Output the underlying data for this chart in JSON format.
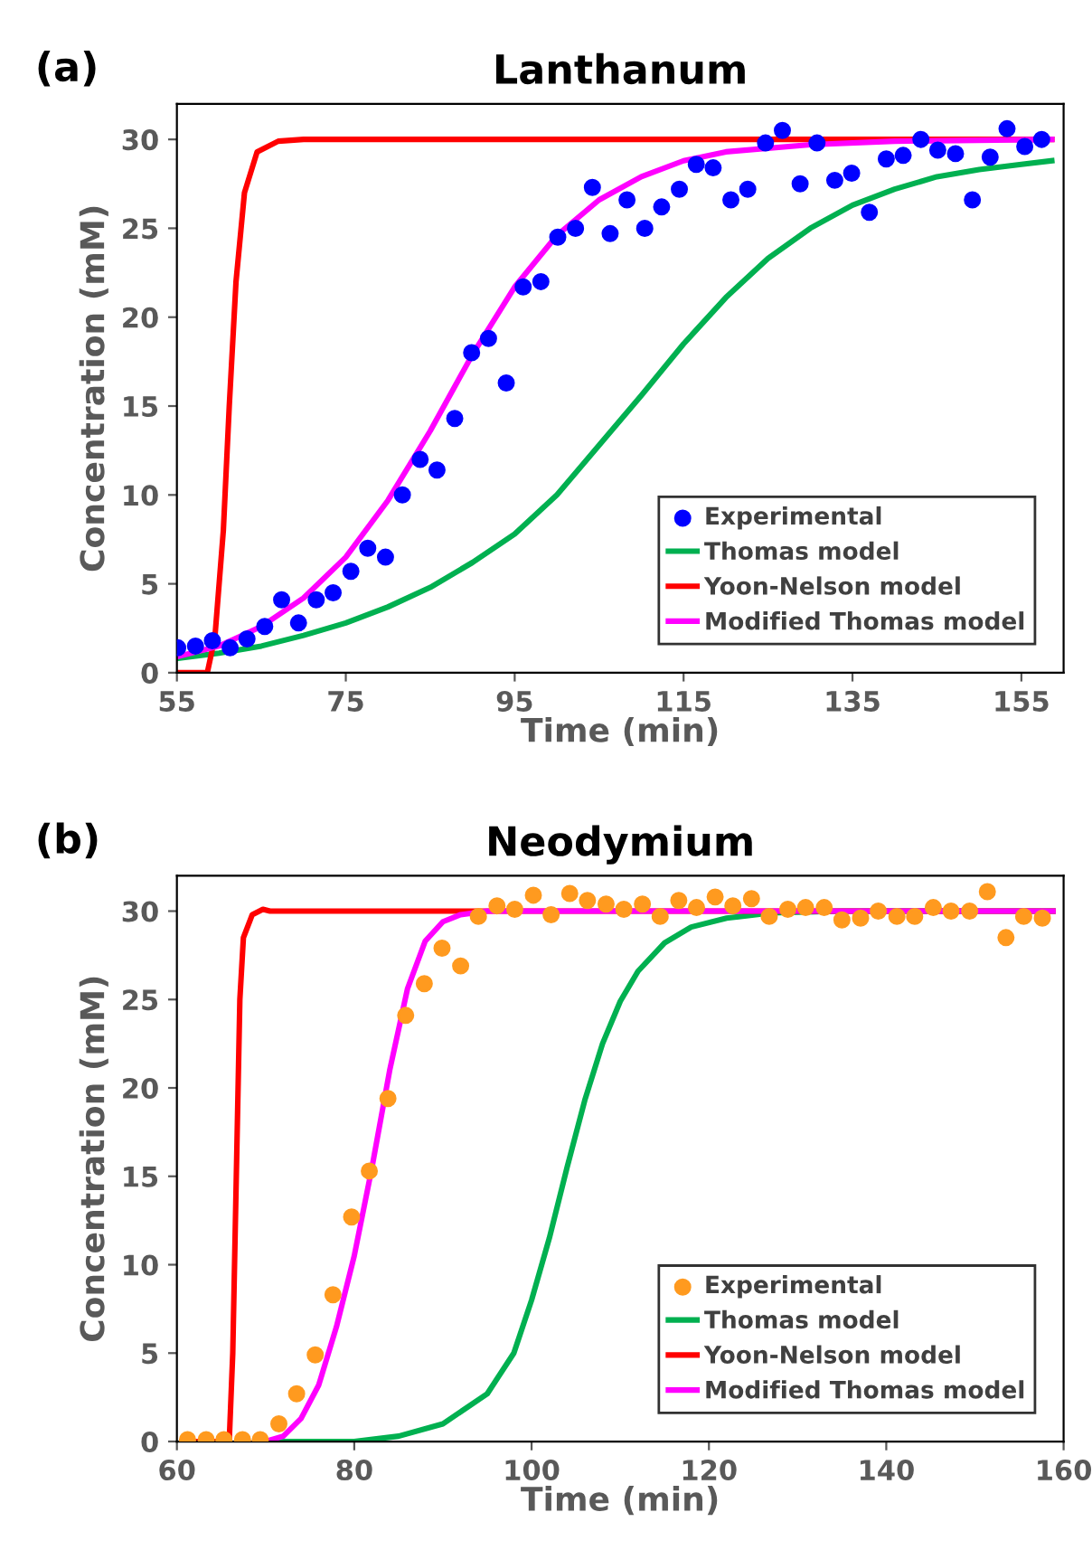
{
  "chart_data": [
    {
      "type": "line",
      "title": "Lanthanum",
      "annotations": [
        "(a)"
      ],
      "xlabel": "Time (min)",
      "ylabel": "Concentration (mM)",
      "xlim": [
        55,
        160
      ],
      "ylim": [
        0,
        32
      ],
      "xticks": [
        55,
        75,
        95,
        115,
        135,
        155
      ],
      "yticks": [
        0,
        5,
        10,
        15,
        20,
        25,
        30
      ],
      "legend": "bottom right",
      "grid": false,
      "series": [
        {
          "name": "Experimental",
          "type": "scatter",
          "marker": "circle",
          "color": "#0000ff",
          "x": [
            55.1,
            57.2,
            59.2,
            61.3,
            63.3,
            65.4,
            67.4,
            69.4,
            71.5,
            73.5,
            75.6,
            77.6,
            79.7,
            81.7,
            83.8,
            85.8,
            87.9,
            89.9,
            91.9,
            94.0,
            96.0,
            98.1,
            100.1,
            102.2,
            104.2,
            106.3,
            108.3,
            110.4,
            112.4,
            114.5,
            116.5,
            118.5,
            120.6,
            122.6,
            124.7,
            126.7,
            128.8,
            130.8,
            132.9,
            134.9,
            137.0,
            139.0,
            141.0,
            143.1,
            145.1,
            147.2,
            149.2,
            151.3,
            153.3,
            155.4,
            157.4
          ],
          "values": [
            1.4,
            1.5,
            1.8,
            1.4,
            1.9,
            2.6,
            4.1,
            2.8,
            4.1,
            4.5,
            5.7,
            7.0,
            6.5,
            10.0,
            12.0,
            11.4,
            14.3,
            18.0,
            18.8,
            16.3,
            21.7,
            22.0,
            24.5,
            25.0,
            27.3,
            24.7,
            26.6,
            25.0,
            26.2,
            27.2,
            28.6,
            28.4,
            26.6,
            27.2,
            29.8,
            30.5,
            27.5,
            29.8,
            27.7,
            28.1,
            25.9,
            28.9,
            29.1,
            30.0,
            29.4,
            29.2,
            26.6,
            29.0,
            30.6,
            29.6,
            30.0
          ]
        },
        {
          "name": "Thomas model",
          "type": "line",
          "marker": "none",
          "color": "#00b050",
          "x": [
            55,
            60,
            65,
            70,
            75,
            80,
            85,
            90,
            95,
            100,
            105,
            110,
            115,
            120,
            125,
            130,
            135,
            140,
            145,
            150,
            155,
            158.6
          ],
          "values": [
            0.8,
            1.1,
            1.5,
            2.1,
            2.8,
            3.7,
            4.8,
            6.2,
            7.8,
            10.0,
            12.8,
            15.6,
            18.5,
            21.1,
            23.3,
            25.0,
            26.3,
            27.2,
            27.9,
            28.3,
            28.6,
            28.8
          ]
        },
        {
          "name": "Yoon-Nelson model",
          "type": "line",
          "marker": "none",
          "color": "#ff0000",
          "x": [
            55,
            58.6,
            59.5,
            60.5,
            61.2,
            62.0,
            63.0,
            64.5,
            67,
            70,
            158.6
          ],
          "values": [
            0,
            0,
            2,
            8,
            15,
            22,
            27,
            29.3,
            29.9,
            30,
            30
          ]
        },
        {
          "name": "Modified Thomas model",
          "type": "line",
          "marker": "none",
          "color": "#ff00ff",
          "x": [
            55,
            60,
            65,
            70,
            75,
            80,
            85,
            90,
            95,
            100,
            105,
            110,
            115,
            120,
            130,
            140,
            158.6
          ],
          "values": [
            0.9,
            1.5,
            2.6,
            4.2,
            6.5,
            9.7,
            13.6,
            17.9,
            21.7,
            24.6,
            26.6,
            27.9,
            28.8,
            29.3,
            29.7,
            29.9,
            30
          ]
        }
      ]
    },
    {
      "type": "line",
      "title": "Neodymium",
      "annotations": [
        "(b)"
      ],
      "xlabel": "Time (min)",
      "ylabel": "Concentration (mM)",
      "xlim": [
        60,
        160
      ],
      "ylim": [
        0,
        32
      ],
      "xticks": [
        60,
        80,
        100,
        120,
        140,
        160
      ],
      "yticks": [
        0,
        5,
        10,
        15,
        20,
        25,
        30
      ],
      "legend": "bottom right",
      "grid": false,
      "series": [
        {
          "name": "Experimental",
          "type": "scatter",
          "marker": "circle",
          "color": "#ff9a1f",
          "x": [
            61.2,
            63.3,
            65.3,
            67.4,
            69.4,
            71.5,
            73.5,
            75.6,
            77.6,
            79.7,
            81.7,
            83.8,
            85.8,
            87.9,
            89.9,
            92.0,
            94.0,
            96.1,
            98.1,
            100.2,
            102.2,
            104.3,
            106.3,
            108.4,
            110.4,
            112.5,
            114.5,
            116.6,
            118.6,
            120.7,
            122.7,
            124.8,
            126.8,
            128.9,
            130.9,
            133.0,
            135.0,
            137.1,
            139.1,
            141.2,
            143.2,
            145.3,
            147.3,
            149.4,
            151.4,
            153.5,
            155.5,
            157.6
          ],
          "values": [
            0.1,
            0.1,
            0.1,
            0.1,
            0.1,
            1.0,
            2.7,
            4.9,
            8.3,
            12.7,
            15.3,
            19.4,
            24.1,
            25.9,
            27.9,
            26.9,
            29.7,
            30.3,
            30.1,
            30.9,
            29.8,
            31.0,
            30.6,
            30.4,
            30.1,
            30.4,
            29.7,
            30.6,
            30.2,
            30.8,
            30.3,
            30.7,
            29.7,
            30.1,
            30.2,
            30.2,
            29.5,
            29.6,
            30.0,
            29.7,
            29.7,
            30.2,
            30.0,
            30.0,
            31.1,
            28.5,
            29.7,
            29.6
          ]
        },
        {
          "name": "Thomas model",
          "type": "line",
          "marker": "none",
          "color": "#00b050",
          "x": [
            70,
            80,
            85,
            90,
            95,
            98,
            100,
            102,
            104,
            106,
            108,
            110,
            112,
            115,
            118,
            122,
            127,
            135,
            158.8
          ],
          "values": [
            0,
            0,
            0.3,
            1.0,
            2.7,
            5,
            8,
            11.5,
            15.5,
            19.3,
            22.5,
            24.9,
            26.6,
            28.2,
            29.1,
            29.6,
            29.9,
            30,
            30
          ]
        },
        {
          "name": "Yoon-Nelson model",
          "type": "line",
          "marker": "none",
          "color": "#ff0000",
          "x": [
            61,
            65.9,
            66.3,
            66.7,
            67.1,
            67.5,
            68.5,
            69.7,
            70.5,
            158.8
          ],
          "values": [
            0,
            0,
            5,
            15,
            25,
            28.5,
            29.8,
            30.1,
            30,
            30
          ]
        },
        {
          "name": "Modified Thomas model",
          "type": "line",
          "marker": "none",
          "color": "#ff00ff",
          "x": [
            70,
            72,
            74,
            76,
            78,
            80,
            82,
            84,
            86,
            88,
            90,
            92,
            95,
            158.8
          ],
          "values": [
            0,
            0.3,
            1.3,
            3.2,
            6.5,
            10.5,
            15.5,
            21,
            25.6,
            28.3,
            29.4,
            29.8,
            30,
            30
          ]
        }
      ]
    }
  ]
}
